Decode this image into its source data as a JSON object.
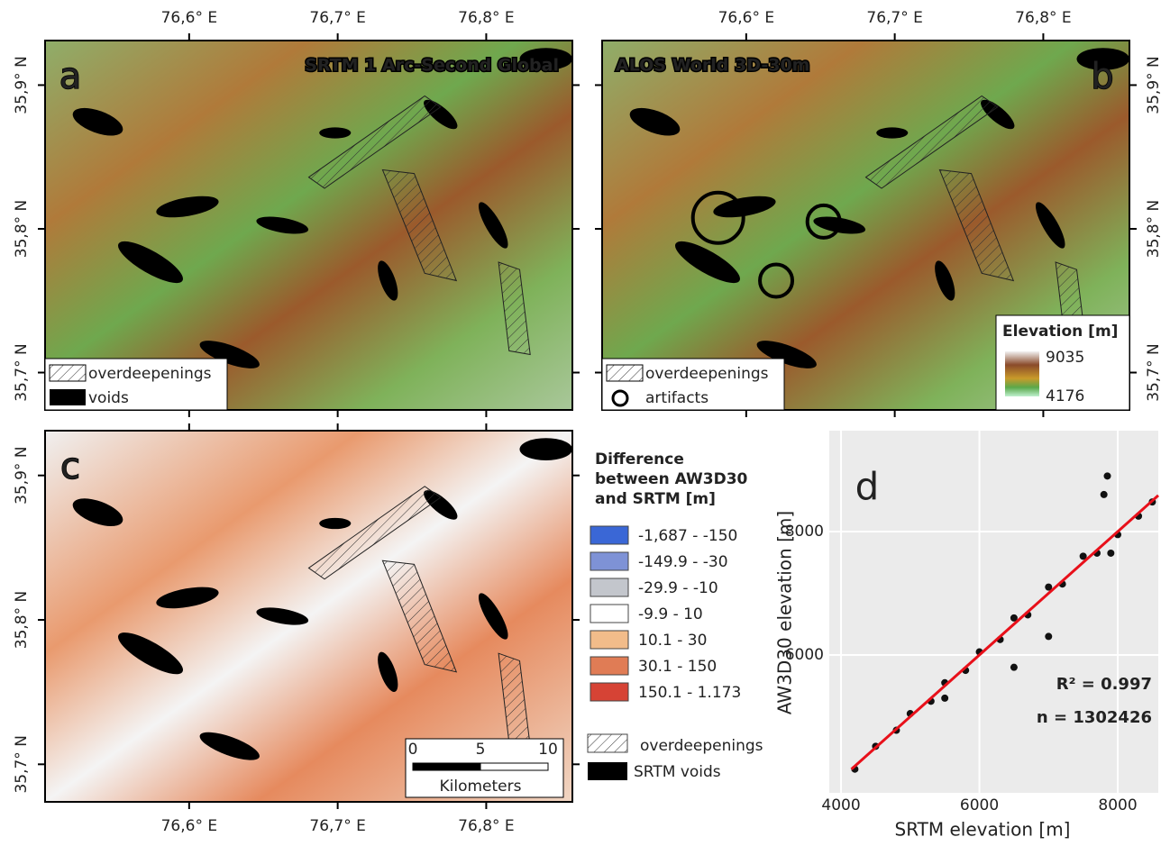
{
  "panels": [
    {
      "letter": "a",
      "title": "SRTM 1 Arc-Second Global",
      "legend": [
        "overdeepenings",
        "voids"
      ]
    },
    {
      "letter": "b",
      "title": "ALOS World 3D-30m",
      "legend": [
        "overdeepenings",
        "artifacts"
      ],
      "elevation_legend": {
        "title": "Elevation [m]",
        "max": 9035,
        "min": 4176
      }
    },
    {
      "letter": "c",
      "legend": [
        "overdeepenings",
        "SRTM voids"
      ],
      "difference_legend": {
        "title": [
          "Difference",
          "between AW3D30",
          "and SRTM [m]"
        ],
        "classes": [
          {
            "label": "-1,687 - -150",
            "color": "#3a67d6"
          },
          {
            "label": "-149.9 - -30",
            "color": "#7e92d6"
          },
          {
            "label": "-29.9 - -10",
            "color": "#c3c6cc"
          },
          {
            "label": "-9.9 - 10",
            "color": "#ffffff"
          },
          {
            "label": "10.1 - 30",
            "color": "#f2bc8a"
          },
          {
            "label": "30.1 - 150",
            "color": "#e07c55"
          },
          {
            "label": "150.1 - 1.173",
            "color": "#d64335"
          }
        ]
      },
      "scale_bar": {
        "title": "Kilometers",
        "ticks": [
          0,
          5,
          10
        ]
      }
    }
  ],
  "map_axes": {
    "xlim": [
      76.503,
      76.858
    ],
    "ylim": [
      35.674,
      35.931
    ],
    "xticks": [
      {
        "value": 76.6,
        "label": "76,6° E"
      },
      {
        "value": 76.7,
        "label": "76,7° E"
      },
      {
        "value": 76.8,
        "label": "76,8° E"
      }
    ],
    "yticks": [
      {
        "value": 35.7,
        "label": "35,7° N"
      },
      {
        "value": 35.8,
        "label": "35,8° N"
      },
      {
        "value": 35.9,
        "label": "35,9° N"
      }
    ]
  },
  "chart_data": {
    "type": "scatter",
    "letter": "d",
    "xlabel": "SRTM elevation [m]",
    "ylabel": "AW3D30 elevation [m]",
    "xlim": [
      3830,
      8586
    ],
    "ylim": [
      3766,
      9635
    ],
    "xticks": [
      4000,
      6000,
      8000
    ],
    "yticks": [
      6000,
      8000
    ],
    "grid": true,
    "annotations": [
      "R² = 0.997",
      "n = 1302426"
    ],
    "series": [
      {
        "color": "#111111",
        "x": [
          4200,
          4500,
          4800,
          5000,
          5300,
          5500,
          5500,
          5800,
          6000,
          6300,
          6500,
          6500,
          6700,
          7000,
          7000,
          7200,
          7500,
          7700,
          7800,
          7850,
          7900,
          8000,
          8300,
          8500
        ],
        "values": [
          4150,
          4520,
          4780,
          5050,
          5250,
          5550,
          5300,
          5750,
          6050,
          6250,
          6600,
          5800,
          6650,
          7100,
          6300,
          7150,
          7600,
          7650,
          8600,
          8900,
          7650,
          7950,
          8250,
          8480
        ]
      }
    ],
    "fit_line": {
      "color": "#e8101a",
      "x": [
        4150,
        8586
      ],
      "values": [
        4150,
        8586
      ]
    }
  }
}
